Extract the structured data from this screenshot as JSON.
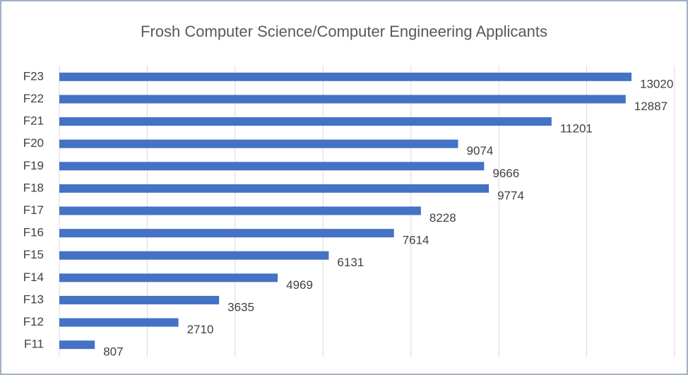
{
  "chart_data": {
    "type": "hbar",
    "title": "Frosh Computer Science/Computer Engineering Applicants",
    "categories": [
      "F23",
      "F22",
      "F21",
      "F20",
      "F19",
      "F18",
      "F17",
      "F16",
      "F15",
      "F14",
      "F13",
      "F12",
      "F11"
    ],
    "values": [
      13020,
      12887,
      11201,
      9074,
      9666,
      9774,
      8228,
      7614,
      6131,
      4969,
      3635,
      2710,
      807
    ],
    "color": "#4472c4",
    "xlim": [
      0,
      14000
    ],
    "xticks": [
      0,
      2000,
      4000,
      6000,
      8000,
      10000,
      12000,
      14000
    ],
    "grid": true
  }
}
